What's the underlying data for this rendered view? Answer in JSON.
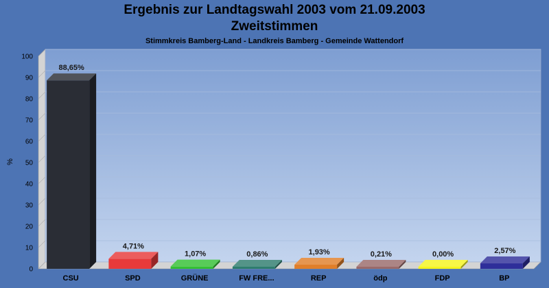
{
  "chart_data": {
    "type": "bar",
    "title": "Ergebnis zur Landtagswahl 2003 vom 21.09.2003",
    "subtitle": "Zweitstimmen",
    "subsubtitle": "Stimmkreis Bamberg-Land - Landkreis Bamberg - Gemeinde Wattendorf",
    "ylabel": "%",
    "xlabel": "",
    "ylim": [
      0,
      100
    ],
    "yticks": [
      0,
      10,
      20,
      30,
      40,
      50,
      60,
      70,
      80,
      90,
      100
    ],
    "grid": true,
    "categories": [
      "CSU",
      "SPD",
      "GRÜNE",
      "FW FRE...",
      "REP",
      "ödp",
      "FDP",
      "BP"
    ],
    "values": [
      88.65,
      4.71,
      1.07,
      0.86,
      1.93,
      0.21,
      0.0,
      2.57
    ],
    "value_labels": [
      "88,65%",
      "4,71%",
      "1,07%",
      "0,86%",
      "1,93%",
      "0,21%",
      "0,00%",
      "2,57%"
    ],
    "colors": [
      "#2a2d35",
      "#e83a3a",
      "#33c033",
      "#2e7d6e",
      "#e07f2a",
      "#9a6a6a",
      "#f5f51e",
      "#2e2e9a"
    ]
  }
}
